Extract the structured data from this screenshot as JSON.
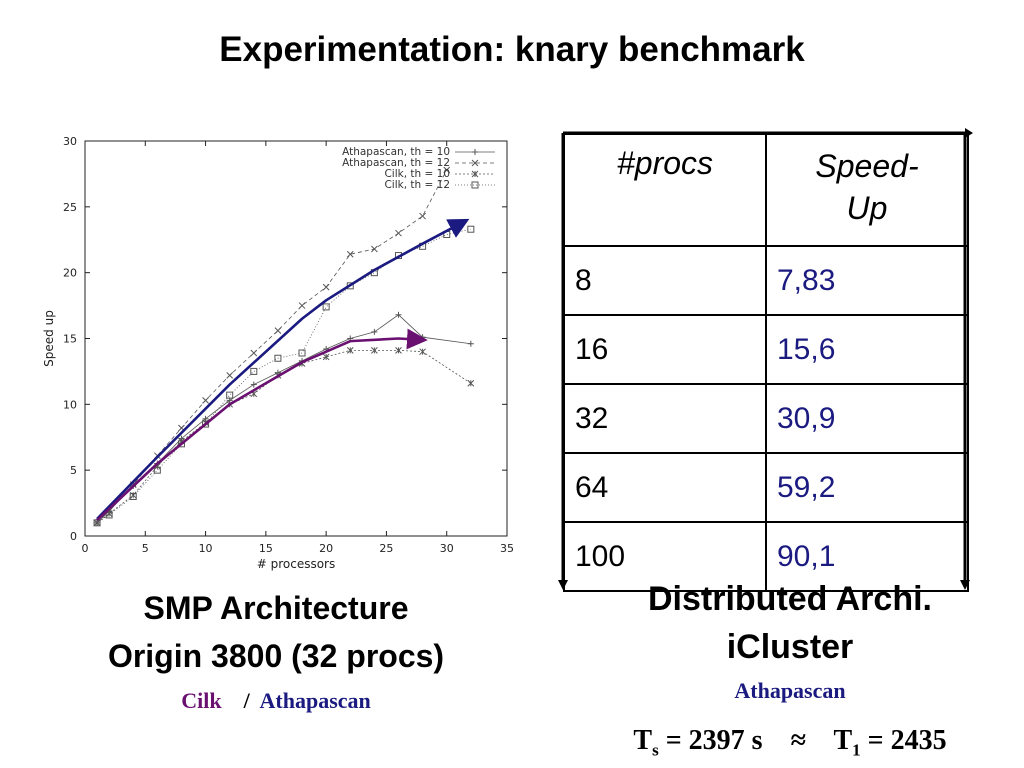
{
  "title": "Experimentation: knary benchmark",
  "chart_data": {
    "type": "line",
    "xlabel": "# processors",
    "ylabel": "Speed up",
    "xlim": [
      0,
      35
    ],
    "ylim": [
      0,
      30
    ],
    "xticks": [
      "0",
      "5",
      "10",
      "15",
      "20",
      "25",
      "30",
      "35"
    ],
    "yticks": [
      "0",
      "5",
      "10",
      "15",
      "20",
      "25",
      "30"
    ],
    "legend_position": "top-right",
    "series": [
      {
        "name": "Athapascan, th = 10",
        "marker": "+",
        "dash": "",
        "color": "#555555",
        "x": [
          1,
          2,
          4,
          6,
          8,
          10,
          12,
          14,
          16,
          18,
          20,
          22,
          24,
          26,
          28,
          32
        ],
        "y": [
          1,
          1.9,
          3.8,
          5.5,
          7.4,
          8.9,
          10.3,
          11.5,
          12.4,
          13.3,
          14.2,
          15.0,
          15.5,
          16.8,
          15.1,
          14.6
        ]
      },
      {
        "name": "Athapascan, th = 12",
        "marker": "x",
        "dash": "4,3",
        "color": "#555555",
        "x": [
          1,
          2,
          4,
          6,
          8,
          10,
          12,
          14,
          16,
          18,
          20,
          22,
          24,
          26,
          28,
          30
        ],
        "y": [
          1,
          1.9,
          3.9,
          6.1,
          8.2,
          10.3,
          12.2,
          13.9,
          15.6,
          17.5,
          18.9,
          21.4,
          21.8,
          23.0,
          24.3,
          27.8
        ]
      },
      {
        "name": "Cilk, th = 10",
        "marker": "*",
        "dash": "2,2",
        "color": "#555555",
        "x": [
          1,
          2,
          4,
          6,
          8,
          10,
          12,
          14,
          16,
          18,
          20,
          22,
          24,
          26,
          28,
          32
        ],
        "y": [
          1,
          1.7,
          3.1,
          5.3,
          7.2,
          8.6,
          10.0,
          10.8,
          12.2,
          13.1,
          13.6,
          14.1,
          14.1,
          14.1,
          14.0,
          11.6
        ]
      },
      {
        "name": "Cilk, th = 12",
        "marker": "square",
        "dash": "1,2",
        "color": "#555555",
        "x": [
          1,
          2,
          4,
          6,
          8,
          10,
          12,
          14,
          16,
          18,
          20,
          22,
          24,
          26,
          28,
          30,
          32
        ],
        "y": [
          1,
          1.6,
          3.0,
          5.0,
          7.0,
          8.5,
          10.7,
          12.5,
          13.5,
          13.9,
          17.4,
          19.0,
          20.0,
          21.3,
          22.0,
          22.9,
          23.3
        ]
      }
    ],
    "annotations": [
      {
        "color": "#1a1a80",
        "x": [
          1,
          6,
          12,
          18,
          20,
          24,
          28,
          31.5
        ],
        "y": [
          1.3,
          6.0,
          11.5,
          16.5,
          17.9,
          20.2,
          22.2,
          23.9
        ]
      },
      {
        "color": "#6a1070",
        "x": [
          1,
          6,
          12,
          18,
          22,
          26,
          28
        ],
        "y": [
          1.2,
          5.5,
          10.0,
          13.2,
          14.8,
          15.0,
          14.9
        ]
      }
    ]
  },
  "table": {
    "headers": [
      "#procs",
      "Speed-\nUp"
    ],
    "rows": [
      [
        "8",
        "7,83"
      ],
      [
        "16",
        "15,6"
      ],
      [
        "32",
        "30,9"
      ],
      [
        "64",
        "59,2"
      ],
      [
        "100",
        "90,1"
      ]
    ]
  },
  "left": {
    "line1": "SMP Architecture",
    "line2": "Origin 3800 (32 procs)",
    "cilk": "Cilk",
    "slash": "/",
    "athapascan": "Athapascan",
    "cilk_color": "#6a1070",
    "athapascan_color": "#1a1a80"
  },
  "right": {
    "line1": "Distributed Archi.",
    "line2": "iCluster",
    "athapascan": "Athapascan",
    "ts_label": "T",
    "ts_sub": "s",
    "ts_value": " = 2397 s",
    "approx": "≈",
    "t1_label": "T",
    "t1_sub": "1",
    "t1_value": " = 2435"
  }
}
